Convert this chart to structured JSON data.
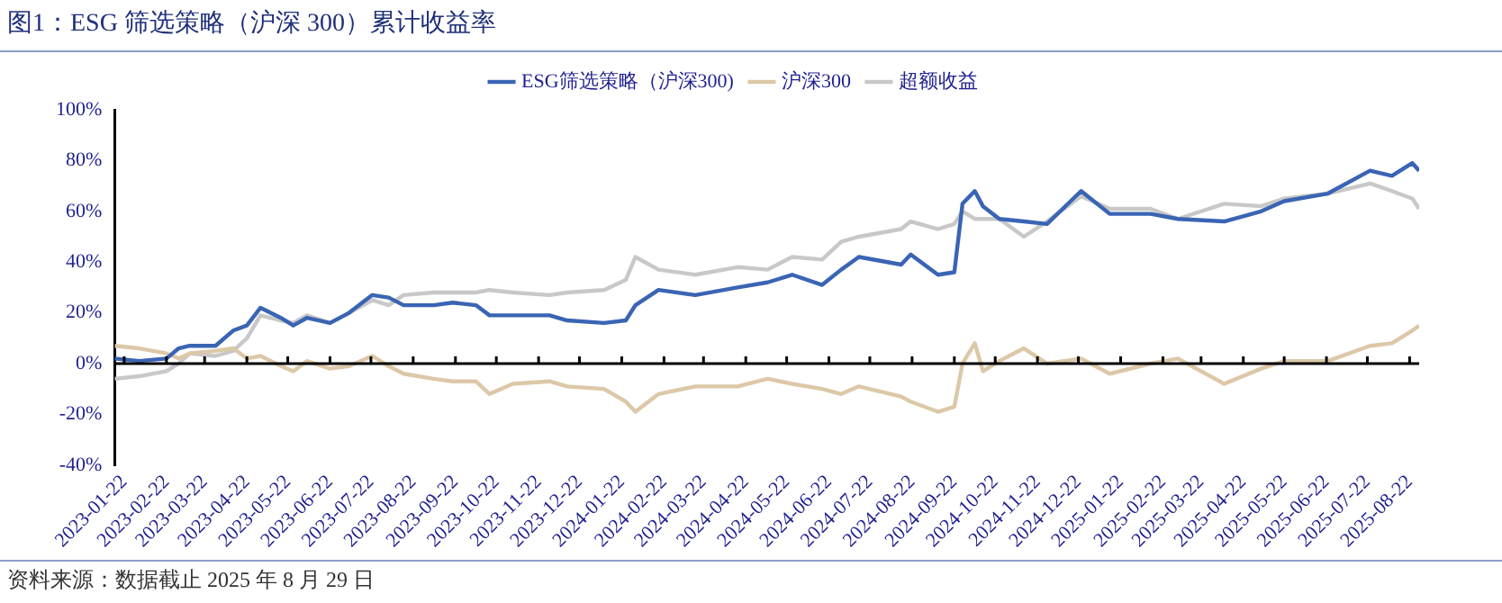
{
  "chart_data": {
    "type": "line",
    "title": "图1：ESG 筛选策略（沪深 300）累计收益率",
    "x": [
      "2023-01-15",
      "2023-02-02",
      "2023-02-22",
      "2023-03-03",
      "2023-03-11",
      "2023-03-30",
      "2023-04-12",
      "2023-04-22",
      "2023-05-02",
      "2023-05-17",
      "2023-05-26",
      "2023-06-05",
      "2023-06-22",
      "2023-07-06",
      "2023-07-23",
      "2023-08-04",
      "2023-08-15",
      "2023-09-06",
      "2023-09-20",
      "2023-10-07",
      "2023-10-17",
      "2023-11-03",
      "2023-11-30",
      "2023-12-13",
      "2024-01-09",
      "2024-01-25",
      "2024-02-01",
      "2024-02-18",
      "2024-03-16",
      "2024-04-16",
      "2024-05-08",
      "2024-05-26",
      "2024-06-17",
      "2024-07-01",
      "2024-07-14",
      "2024-08-14",
      "2024-08-21",
      "2024-09-10",
      "2024-09-22",
      "2024-09-28",
      "2024-10-07",
      "2024-10-13",
      "2024-10-25",
      "2024-11-12",
      "2024-11-29",
      "2024-12-24",
      "2025-01-14",
      "2025-02-13",
      "2025-03-05",
      "2025-04-08",
      "2025-05-05",
      "2025-05-22",
      "2025-06-23",
      "2025-07-24",
      "2025-08-09",
      "2025-08-24",
      "2025-08-29"
    ],
    "series": [
      {
        "name": "ESG筛选策略（沪深300)",
        "color": "#3a64b4",
        "values": [
          2,
          1,
          2,
          6,
          7,
          7,
          13,
          15,
          22,
          18,
          15,
          18,
          16,
          20,
          27,
          26,
          23,
          23,
          24,
          23,
          19,
          19,
          19,
          17,
          16,
          17,
          23,
          29,
          27,
          30,
          32,
          35,
          31,
          37,
          42,
          39,
          43,
          35,
          36,
          63,
          68,
          62,
          57,
          56,
          55,
          68,
          59,
          59,
          57,
          56,
          60,
          64,
          67,
          76,
          74,
          79,
          76
        ]
      },
      {
        "name": "沪深300",
        "color": "#dcc8a8",
        "values": [
          7,
          6,
          4,
          2,
          4,
          5,
          6,
          2,
          3,
          -1,
          -3,
          1,
          -2,
          -1,
          3,
          -1,
          -4,
          -6,
          -7,
          -7,
          -12,
          -8,
          -7,
          -9,
          -10,
          -15,
          -19,
          -12,
          -9,
          -9,
          -6,
          -8,
          -10,
          -12,
          -9,
          -13,
          -15,
          -19,
          -17,
          0,
          8,
          -3,
          1,
          6,
          0,
          2,
          -4,
          0,
          2,
          -8,
          -2,
          1,
          1,
          7,
          8,
          13,
          15
        ]
      },
      {
        "name": "超额收益",
        "color": "#c8c8c8",
        "values": [
          -6,
          -5,
          -3,
          0,
          4,
          3,
          5,
          10,
          19,
          17,
          16,
          19,
          16,
          20,
          25,
          23,
          27,
          28,
          28,
          28,
          29,
          28,
          27,
          28,
          29,
          33,
          42,
          37,
          35,
          38,
          37,
          42,
          41,
          48,
          50,
          53,
          56,
          53,
          55,
          60,
          57,
          57,
          57,
          50,
          56,
          66,
          61,
          61,
          57,
          63,
          62,
          65,
          67,
          71,
          68,
          65,
          61
        ]
      }
    ],
    "xlim": [
      "2023-01-15",
      "2025-08-29"
    ],
    "xticks": [
      "2023-01-22",
      "2023-02-22",
      "2023-03-22",
      "2023-04-22",
      "2023-05-22",
      "2023-06-22",
      "2023-07-22",
      "2023-08-22",
      "2023-09-22",
      "2023-10-22",
      "2023-11-22",
      "2023-12-22",
      "2024-01-22",
      "2024-02-22",
      "2024-03-22",
      "2024-04-22",
      "2024-05-22",
      "2024-06-22",
      "2024-07-22",
      "2024-08-22",
      "2024-09-22",
      "2024-10-22",
      "2024-11-22",
      "2024-12-22",
      "2025-01-22",
      "2025-02-22",
      "2025-03-22",
      "2025-04-22",
      "2025-05-22",
      "2025-06-22",
      "2025-07-22",
      "2025-08-22"
    ],
    "ylim": [
      -40,
      100
    ],
    "yticks": [
      {
        "value": -40,
        "label": "-40%"
      },
      {
        "value": -20,
        "label": "-20%"
      },
      {
        "value": 0,
        "label": "0%"
      },
      {
        "value": 20,
        "label": "20%"
      },
      {
        "value": 40,
        "label": "40%"
      },
      {
        "value": 60,
        "label": "60%"
      },
      {
        "value": 80,
        "label": "80%"
      },
      {
        "value": 100,
        "label": "100%"
      }
    ],
    "ref_lines": [
      {
        "axis": "y",
        "value": 0,
        "color": "#000000"
      }
    ],
    "grid": false,
    "legend": "top",
    "marker": "none",
    "line_style": "solid",
    "annotations": [
      "资料来源：数据截止 2025 年 8 月 29 日"
    ]
  }
}
